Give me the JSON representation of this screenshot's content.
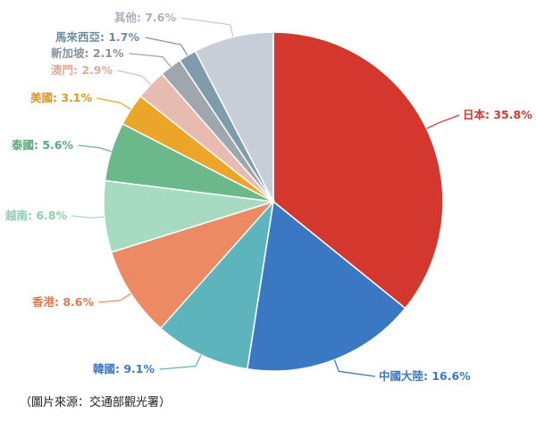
{
  "chart_data": {
    "type": "pie",
    "title": "",
    "categories": [
      "日本",
      "中國大陸",
      "韓國",
      "香港",
      "越南",
      "泰國",
      "美國",
      "澳門",
      "新加坡",
      "馬來西亞",
      "其他"
    ],
    "values": [
      35.8,
      16.6,
      9.1,
      8.6,
      6.8,
      5.6,
      3.1,
      2.9,
      2.1,
      1.7,
      7.6
    ],
    "labels": [
      "日本: 35.8%",
      "中國大陸: 16.6%",
      "韓國: 9.1%",
      "香港: 8.6%",
      "越南: 6.8%",
      "泰國: 5.6%",
      "美國: 3.1%",
      "澳門: 2.9%",
      "新加坡: 2.1%",
      "馬來西亞: 1.7%",
      "其他: 7.6%"
    ],
    "colors": [
      "#d3372e",
      "#3a78c3",
      "#5eb4bd",
      "#ec8a63",
      "#a6dbc1",
      "#6bb88a",
      "#eba629",
      "#e7bbb0",
      "#a0a6ae",
      "#7e9cab",
      "#c7ced8"
    ],
    "label_colors": [
      "#d3372e",
      "#3a78c3",
      "#3a78c3",
      "#e07a50",
      "#8ccfae",
      "#5aa878",
      "#e0981a",
      "#e0aa9c",
      "#8a9099",
      "#6e8c9b",
      "#a9b1bc"
    ],
    "start": "top",
    "direction": "clockwise",
    "unit": "%"
  },
  "caption": "（圖片來源：交通部觀光署）"
}
